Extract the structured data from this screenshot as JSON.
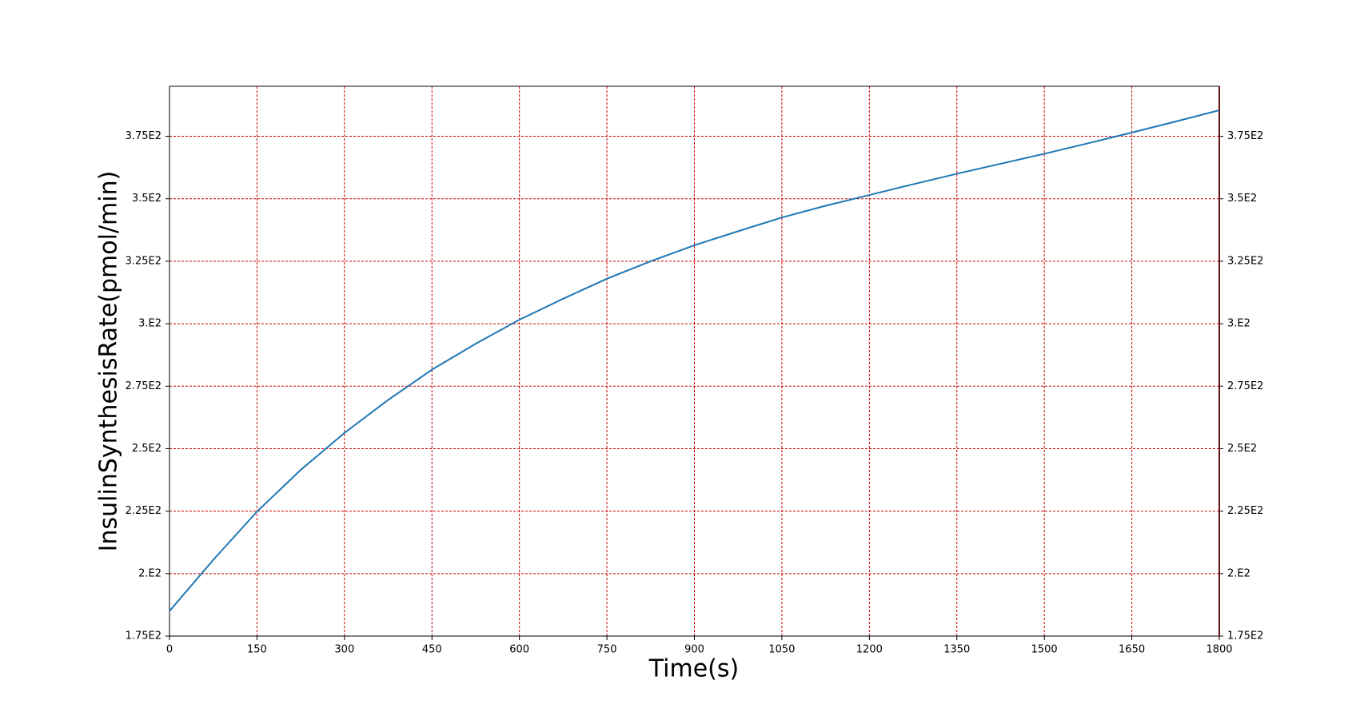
{
  "chart_data": {
    "type": "line",
    "x_label": "Time(s)",
    "y_label": "InsulinSynthesisRate(pmol/min)",
    "x": [
      0,
      75,
      150,
      225,
      300,
      375,
      450,
      525,
      600,
      675,
      750,
      825,
      900,
      975,
      1050,
      1125,
      1200,
      1275,
      1350,
      1425,
      1500,
      1575,
      1650,
      1725,
      1800
    ],
    "series": [
      {
        "color": "#1f77b4",
        "values": [
          185,
          205.5,
          224.8,
          241.5,
          256.3,
          269.5,
          281.6,
          292,
          301.6,
          310,
          318,
          325,
          331.4,
          337,
          342.5,
          347.2,
          351.5,
          355.8,
          360,
          364,
          368,
          372.2,
          376.5,
          380.9,
          385.4
        ]
      }
    ],
    "xlim": [
      0,
      1800
    ],
    "xticks": [
      0,
      150,
      300,
      450,
      600,
      750,
      900,
      1050,
      1200,
      1350,
      1500,
      1650,
      1800
    ],
    "ylim": [
      175,
      395
    ],
    "yticks": [
      {
        "value": 175,
        "label": "1.75E2"
      },
      {
        "value": 200,
        "label": "2.E2"
      },
      {
        "value": 225,
        "label": "2.25E2"
      },
      {
        "value": 250,
        "label": "2.5E2"
      },
      {
        "value": 275,
        "label": "2.75E2"
      },
      {
        "value": 300,
        "label": "3.E2"
      },
      {
        "value": 325,
        "label": "3.25E2"
      },
      {
        "value": 350,
        "label": "3.5E2"
      },
      {
        "value": 375,
        "label": "3.75E2"
      }
    ],
    "grid": true,
    "grid_color": "#cc0000",
    "right_axis_color": "#6b0f0f"
  }
}
